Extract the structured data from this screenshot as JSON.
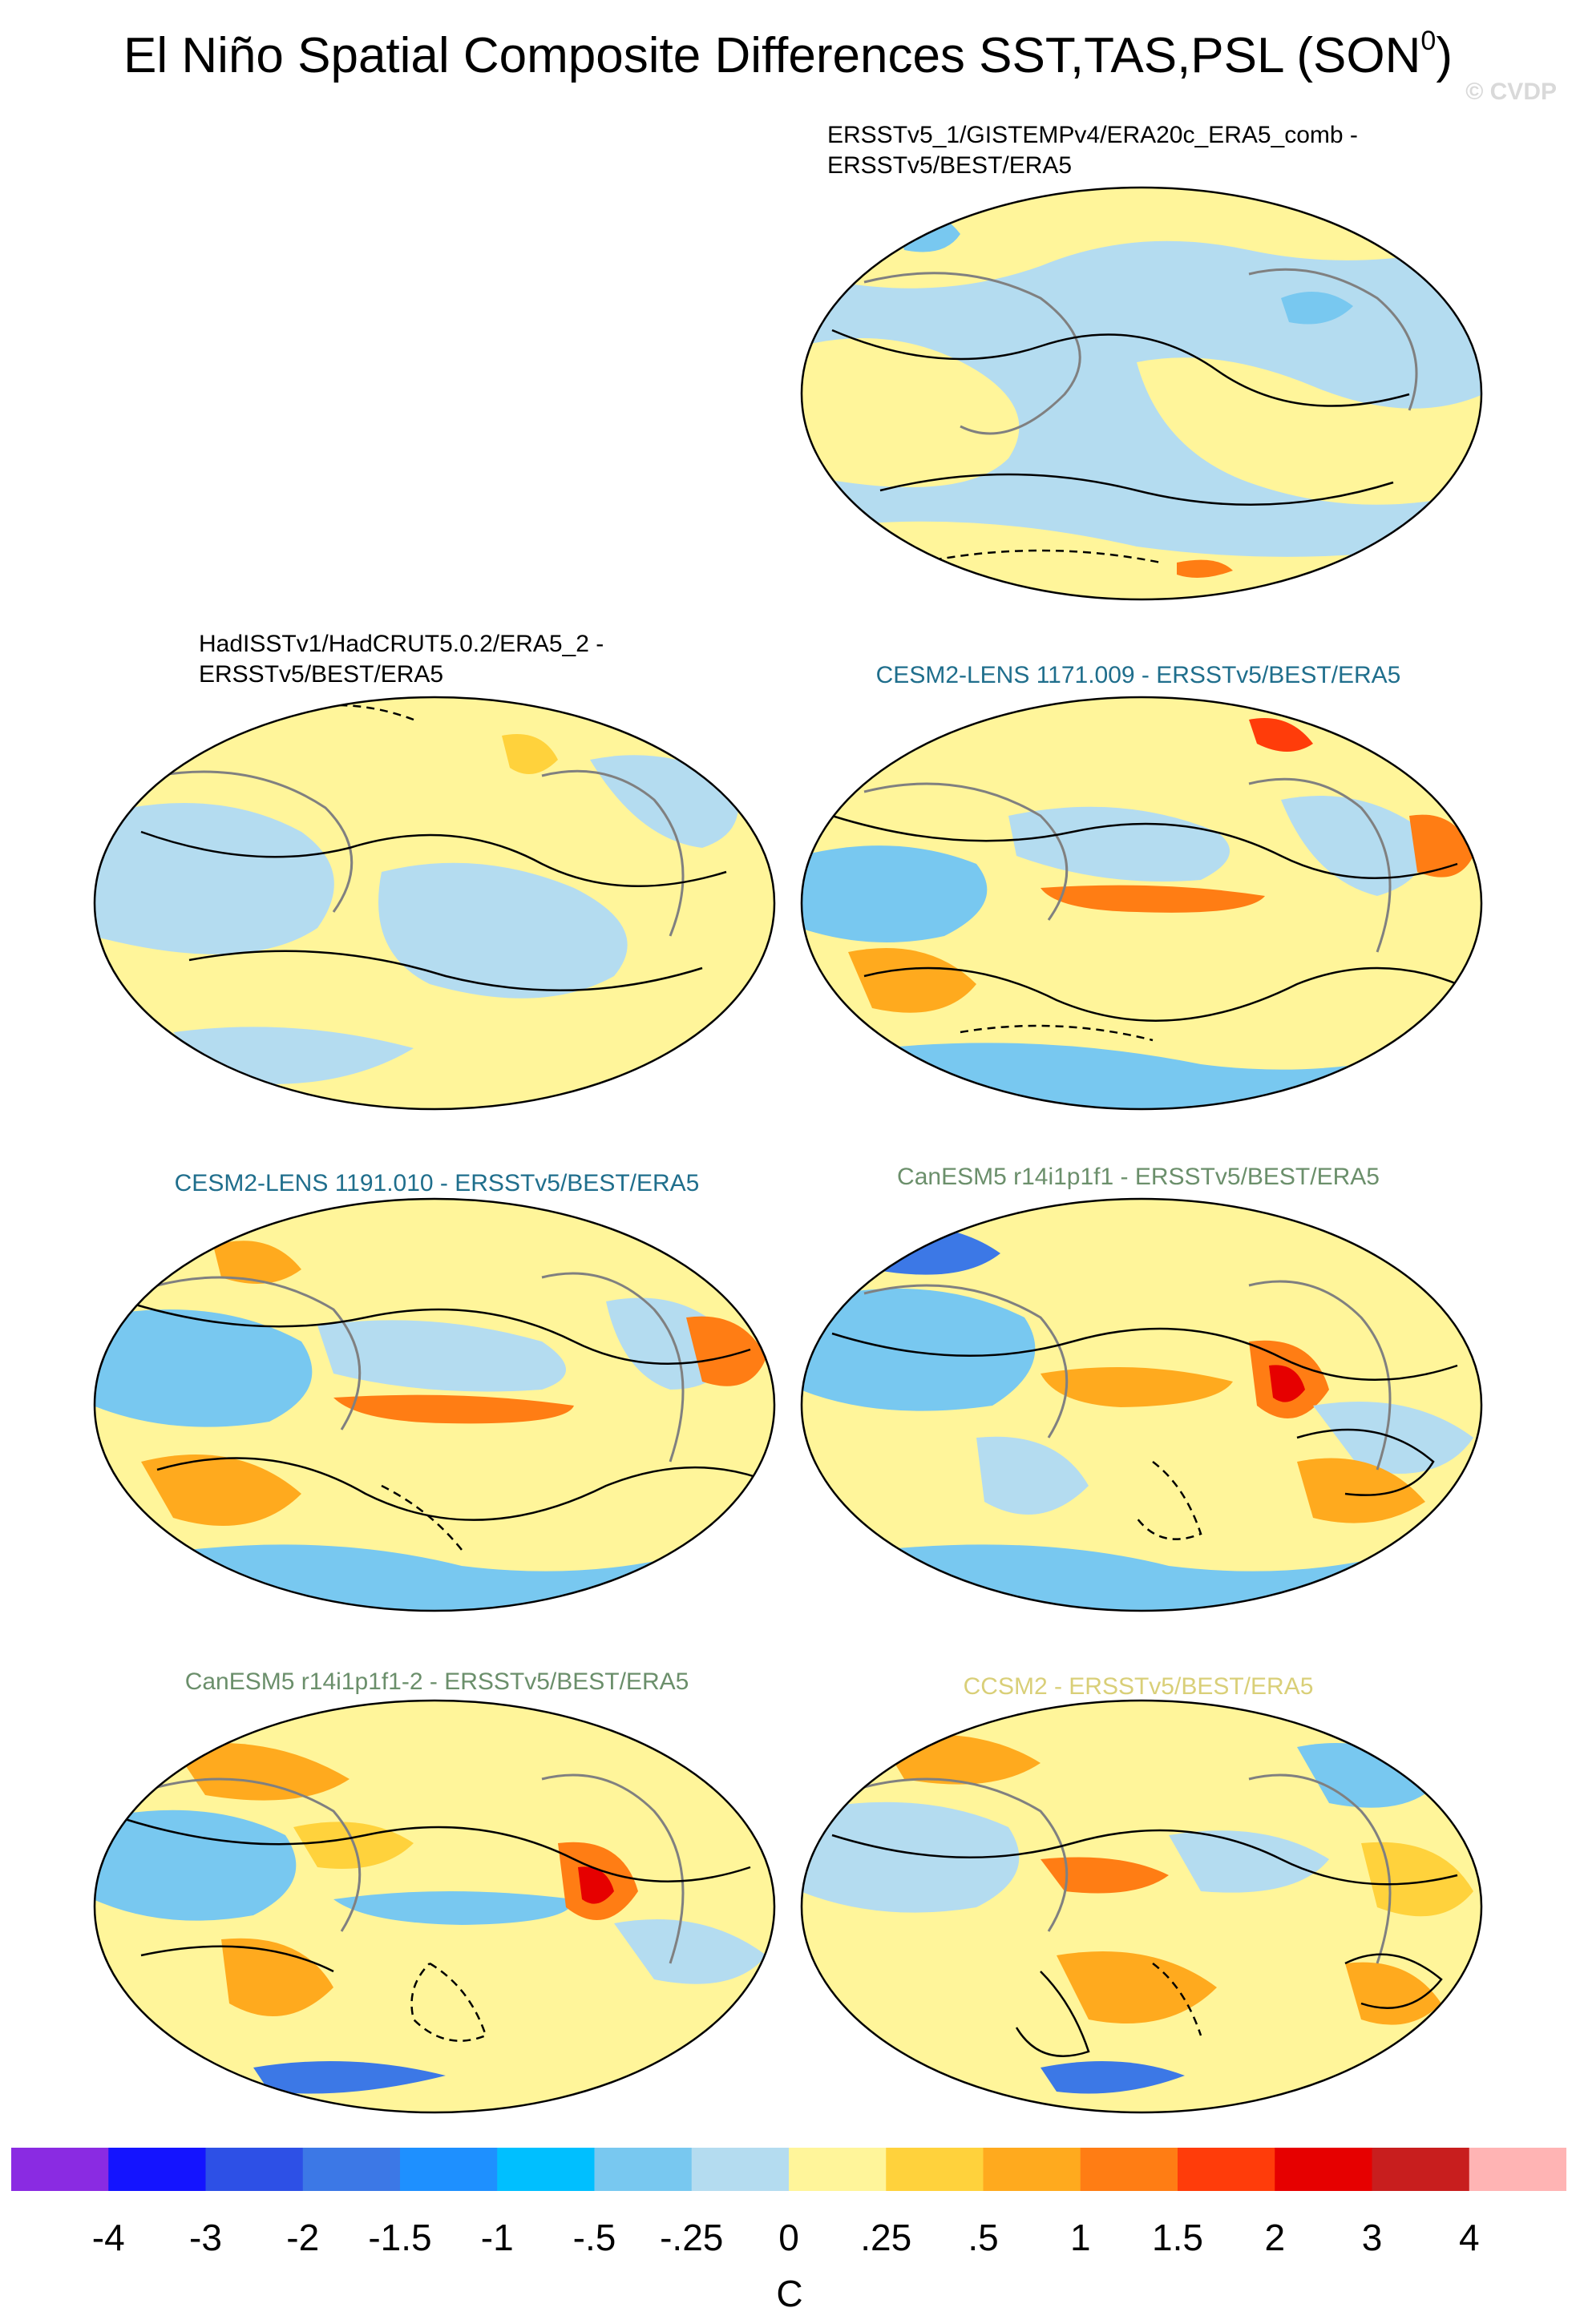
{
  "title": {
    "main": "El Niño Spatial Composite Differences SST,TAS,PSL (SON",
    "superscript": "0",
    "close": ")"
  },
  "watermark": "© CVDP",
  "panels": [
    {
      "label_line1": "ERSSTv5_1/GISTEMPv4/ERA20c_ERA5_comb -",
      "label_line2": "ERSSTv5/BEST/ERA5",
      "label_color": "#000000"
    },
    {
      "label_line1": "HadISSTv1/HadCRUT5.0.2/ERA5_2 -",
      "label_line2": "ERSSTv5/BEST/ERA5",
      "label_color": "#000000"
    },
    {
      "label_line1": "CESM2-LENS 1171.009 - ERSSTv5/BEST/ERA5",
      "label_line2": "",
      "label_color": "#1f6e8c"
    },
    {
      "label_line1": "CESM2-LENS 1191.010 - ERSSTv5/BEST/ERA5",
      "label_line2": "",
      "label_color": "#1f6e8c"
    },
    {
      "label_line1": "CanESM5 r14i1p1f1 - ERSSTv5/BEST/ERA5",
      "label_line2": "",
      "label_color": "#6b8f6b"
    },
    {
      "label_line1": "CanESM5 r14i1p1f1-2 - ERSSTv5/BEST/ERA5",
      "label_line2": "",
      "label_color": "#6b8f6b"
    },
    {
      "label_line1": "CCSM2 - ERSSTv5/BEST/ERA5",
      "label_line2": "",
      "label_color": "#d9cf78"
    }
  ],
  "colorbar": {
    "colors": [
      "#8a2be2",
      "#1414ff",
      "#2d50e6",
      "#3c78e6",
      "#1e90ff",
      "#00bfff",
      "#78c8f0",
      "#b4dcf0",
      "#fff59a",
      "#ffd23c",
      "#ffaa1e",
      "#ff7d14",
      "#ff3c0a",
      "#e60000",
      "#c81e1e",
      "#ffb4b4"
    ],
    "tick_labels": [
      "-4",
      "-3",
      "-2",
      "-1.5",
      "-1",
      "-.5",
      "-.25",
      "0",
      ".25",
      ".5",
      "1",
      "1.5",
      "2",
      "3",
      "4"
    ],
    "units": "C"
  }
}
